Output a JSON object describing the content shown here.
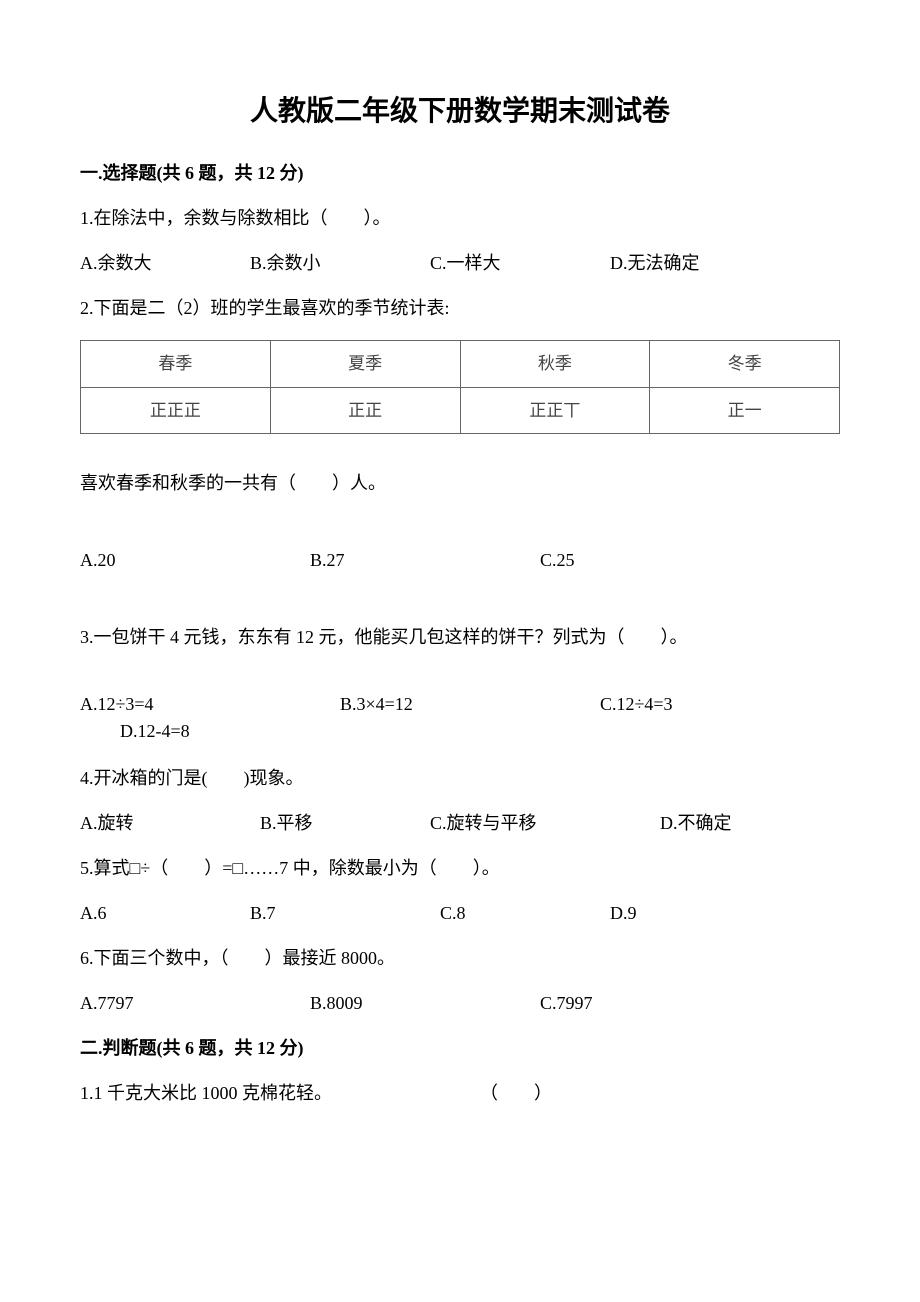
{
  "title": "人教版二年级下册数学期末测试卷",
  "section1": {
    "header": "一.选择题(共 6 题，共 12 分)",
    "q1": {
      "prompt": "1.在除法中，余数与除数相比（　　）。",
      "a": "A.余数大",
      "b": "B.余数小",
      "c": "C.一样大",
      "d": "D.无法确定"
    },
    "q2": {
      "prompt": "2.下面是二（2）班的学生最喜欢的季节统计表:",
      "table": {
        "headers": [
          "春季",
          "夏季",
          "秋季",
          "冬季"
        ],
        "tallies": [
          "正正正",
          "正正",
          "正正丅",
          "正一"
        ]
      },
      "sub": "喜欢春季和秋季的一共有（　　）人。",
      "a": "A.20",
      "b": "B.27",
      "c": "C.25"
    },
    "q3": {
      "prompt": "3.一包饼干 4 元钱，东东有 12 元，他能买几包这样的饼干？列式为（　　）。",
      "a": "A.12÷3=4",
      "b": "B.3×4=12",
      "c": "C.12÷4=3",
      "d": "D.12-4=8"
    },
    "q4": {
      "prompt": "4.开冰箱的门是(　　)现象。",
      "a": "A.旋转",
      "b": "B.平移",
      "c": "C.旋转与平移",
      "d": "D.不确定"
    },
    "q5": {
      "prompt": "5.算式□÷（　　）=□……7 中，除数最小为（　　）。",
      "a": "A.6",
      "b": "B.7",
      "c": "C.8",
      "d": "D.9"
    },
    "q6": {
      "prompt": "6.下面三个数中，（　　）最接近 8000。",
      "a": "A.7797",
      "b": "B.8009",
      "c": "C.7997"
    }
  },
  "section2": {
    "header": "二.判断题(共 6 题，共 12 分)",
    "q1": {
      "stmt": "1.1 千克大米比 1000 克棉花轻。",
      "paren": "（　　）"
    }
  }
}
